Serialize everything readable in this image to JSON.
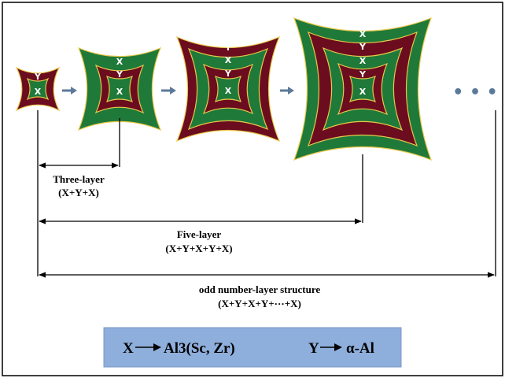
{
  "colors": {
    "green": "#1f7a3a",
    "maroon": "#6b0d1e",
    "border_yellow": "#e8c84a",
    "arrow_blue": "#5b7a9a",
    "legend_bg": "#8eaedb",
    "frame": "#000000"
  },
  "structures": [
    {
      "id": "s1",
      "labels": [
        "Y",
        "X"
      ]
    },
    {
      "id": "s2",
      "labels": [
        "X",
        "Y",
        "X"
      ]
    },
    {
      "id": "s3",
      "labels": [
        "Y",
        "X",
        "Y",
        "X"
      ]
    },
    {
      "id": "s4",
      "labels": [
        "X",
        "Y",
        "X",
        "Y",
        "X"
      ]
    }
  ],
  "ellipsis": "• • •",
  "spans": [
    {
      "title": "Three-layer",
      "formula": "(X+Y+X)"
    },
    {
      "title": "Five-layer",
      "formula": "(X+Y+X+Y+X)"
    },
    {
      "title": "odd number-layer structure",
      "formula": "(X+Y+X+Y+···+X)"
    }
  ],
  "legend": {
    "x_symbol": "X",
    "x_value": "Al3(Sc, Zr)",
    "y_symbol": "Y",
    "y_value": "α-Al"
  }
}
